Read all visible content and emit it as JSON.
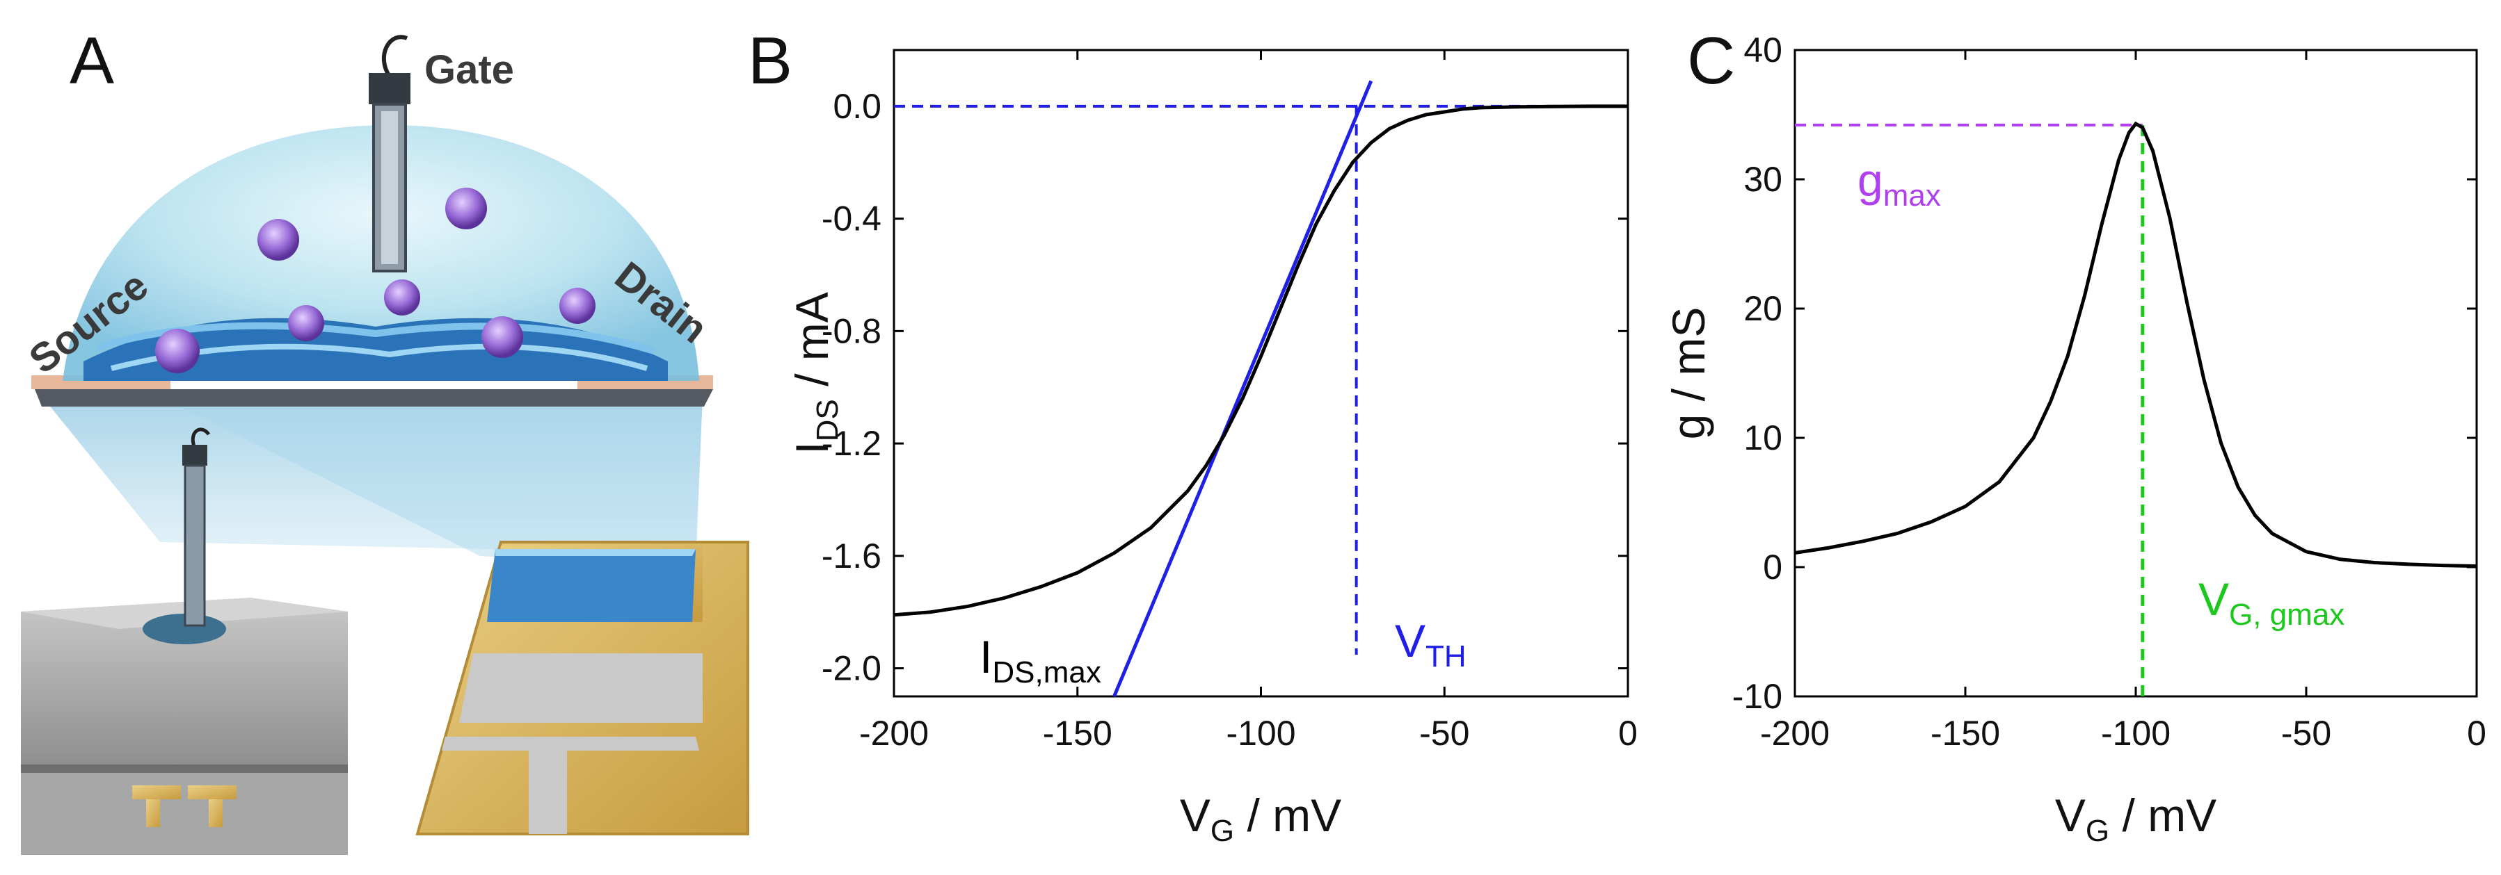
{
  "panel_labels": {
    "a": "A",
    "b": "B",
    "c": "C"
  },
  "scheme": {
    "gate": "Gate",
    "source": "Source",
    "drain": "Drain"
  },
  "colors": {
    "curve": "#000000",
    "tangent": "#1f1fe6",
    "blue_dash": "#1f1fe6",
    "purple_dash": "#b040ee",
    "green_dash": "#1cc81c",
    "gold_electrode": "#d8b45a",
    "channel_blue": "#3b86c8"
  },
  "chart_data": [
    {
      "type": "line",
      "panel": "B",
      "xlabel_main": "V",
      "xlabel_sub": "G",
      "xlabel_rest": " / mV",
      "ylabel_main": "I",
      "ylabel_sub": "DS",
      "ylabel_rest": " / mA",
      "xlim": [
        -200,
        0
      ],
      "ylim": [
        -2.1,
        0.2
      ],
      "xticks": [
        -200,
        -150,
        -100,
        -50,
        0
      ],
      "xtick_labels": [
        "-200",
        "-150",
        "-100",
        "-50",
        "0"
      ],
      "yticks": [
        0.0,
        -0.4,
        -0.8,
        -1.2,
        -1.6,
        -2.0
      ],
      "ytick_labels": [
        "0.0",
        "-0.4",
        "-0.8",
        "-1.2",
        "-1.6",
        "-2.0"
      ],
      "grid": false,
      "series": [
        {
          "x": [
            -200,
            -190,
            -180,
            -170,
            -160,
            -150,
            -140,
            -130,
            -120,
            -115,
            -110,
            -105,
            -100,
            -95,
            -90,
            -85,
            -80,
            -75,
            -70,
            -65,
            -60,
            -55,
            -50,
            -45,
            -40,
            -30,
            -20,
            -10,
            0
          ],
          "y": [
            -1.81,
            -1.8,
            -1.78,
            -1.75,
            -1.71,
            -1.66,
            -1.59,
            -1.5,
            -1.37,
            -1.28,
            -1.17,
            -1.04,
            -0.89,
            -0.73,
            -0.57,
            -0.42,
            -0.3,
            -0.2,
            -0.13,
            -0.08,
            -0.05,
            -0.03,
            -0.02,
            -0.01,
            -0.005,
            -0.002,
            -0.001,
            0.0,
            0.0
          ]
        }
      ],
      "tangent_line": {
        "x": [
          -140,
          -70
        ],
        "y": [
          -2.1,
          0.09
        ]
      },
      "reference_lines": {
        "vth": -74,
        "y_zero": 0.0
      },
      "annotations": {
        "ids_max_main": "I",
        "ids_max_sub": "DS,max",
        "vth_main": "V",
        "vth_sub": "TH"
      }
    },
    {
      "type": "line",
      "panel": "C",
      "xlabel_main": "V",
      "xlabel_sub": "G",
      "xlabel_rest": " / mV",
      "ylabel": "g / mS",
      "xlim": [
        -200,
        0
      ],
      "ylim": [
        -10,
        40
      ],
      "xticks": [
        -200,
        -150,
        -100,
        -50,
        0
      ],
      "xtick_labels": [
        "-200",
        "-150",
        "-100",
        "-50",
        "0"
      ],
      "yticks": [
        -10,
        0,
        10,
        20,
        30,
        40
      ],
      "ytick_labels": [
        "-10",
        "0",
        "10",
        "20",
        "30",
        "40"
      ],
      "grid": false,
      "series": [
        {
          "x": [
            -200,
            -190,
            -180,
            -170,
            -160,
            -150,
            -140,
            -130,
            -125,
            -120,
            -115,
            -110,
            -105,
            -102,
            -100,
            -98,
            -95,
            -90,
            -85,
            -80,
            -75,
            -70,
            -65,
            -60,
            -50,
            -40,
            -30,
            -20,
            -10,
            0
          ],
          "y": [
            1.1,
            1.5,
            2.0,
            2.6,
            3.5,
            4.7,
            6.6,
            10.0,
            12.8,
            16.3,
            21.0,
            26.5,
            31.5,
            33.6,
            34.3,
            34.0,
            32.2,
            27.0,
            20.5,
            14.5,
            9.6,
            6.2,
            4.0,
            2.6,
            1.2,
            0.6,
            0.35,
            0.22,
            0.13,
            0.08
          ]
        }
      ],
      "reference_lines": {
        "gmax": 34.2,
        "vg_gmax": -98
      },
      "annotations": {
        "gmax_main": "g",
        "gmax_sub": "max",
        "vg_gmax_main": "V",
        "vg_gmax_sub": "G, gmax"
      }
    }
  ]
}
